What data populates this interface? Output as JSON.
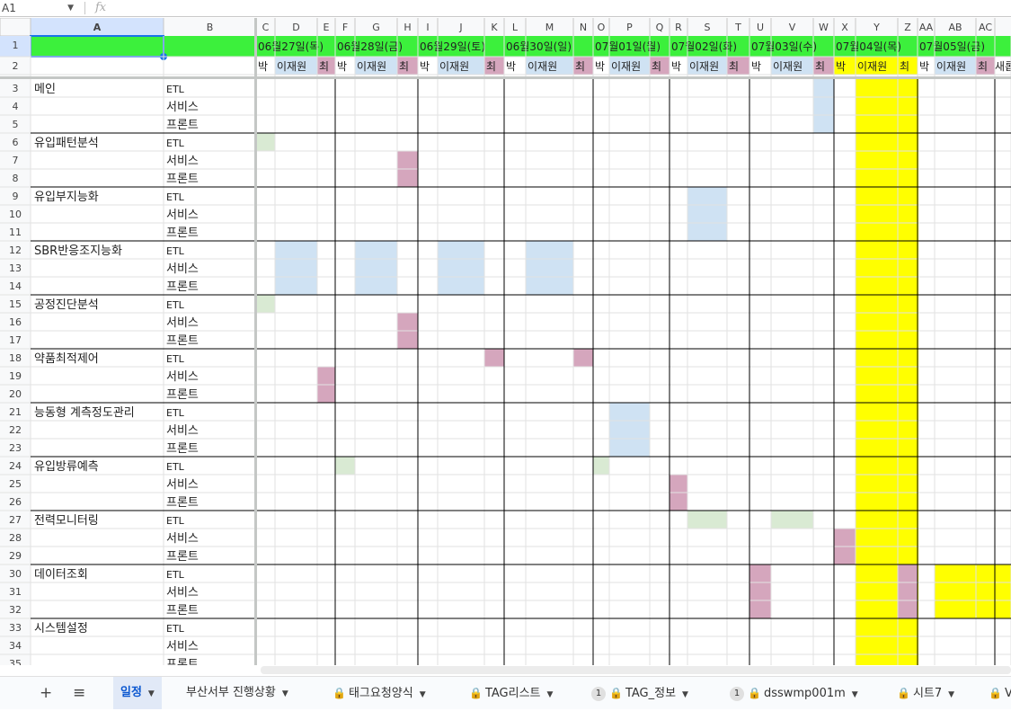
{
  "formula_bar": {
    "cell_ref": "A1",
    "fx": "fx"
  },
  "columns": [
    "A",
    "B",
    "C",
    "D",
    "E",
    "F",
    "G",
    "H",
    "I",
    "J",
    "K",
    "L",
    "M",
    "N",
    "O",
    "P",
    "Q",
    "R",
    "S",
    "T",
    "U",
    "V",
    "W",
    "X",
    "Y",
    "Z",
    "AA",
    "AB",
    "AC"
  ],
  "header": {
    "dates": [
      "06월27일(목)",
      "06월28일(금)",
      "06월29일(토)",
      "06월30일(일)",
      "07월01일(월)",
      "07월02일(화)",
      "07월03일(수)",
      "07월04일(목)",
      "07월05일(금)"
    ],
    "people": [
      "박",
      "이재원",
      "최"
    ],
    "trailing_text": "새롭"
  },
  "row_numbers": [
    "1",
    "2",
    "3",
    "4",
    "5",
    "6",
    "7",
    "8",
    "9",
    "10",
    "11",
    "12",
    "13",
    "14",
    "15",
    "16",
    "17",
    "18",
    "19",
    "20",
    "21",
    "22",
    "23",
    "24",
    "25",
    "26",
    "27",
    "28",
    "29",
    "30",
    "31",
    "32",
    "33",
    "34",
    "35"
  ],
  "modules": [
    "메인",
    "유입패턴분석",
    "유입부지능화",
    "SBR반응조지능화",
    "공정진단분석",
    "약품최적제어",
    "능동형 계측정도관리",
    "유입방류예측",
    "전력모니터링",
    "데이터조회",
    "시스템설정"
  ],
  "sub_rows": [
    "ETL",
    "서비스",
    "프론트"
  ],
  "colors": {
    "header_green": "#3cf03c",
    "etl": "#d9ead3",
    "service": "#cfe2f3",
    "front": "#d5a6bd",
    "highlight": "#ffff00",
    "selected": "#e8f0fe"
  },
  "tabs": [
    {
      "label": "일정",
      "locked": false,
      "badge": "",
      "active": true
    },
    {
      "label": "부산서부 진행상황",
      "locked": false,
      "badge": "",
      "active": false
    },
    {
      "label": "태그요청양식",
      "locked": true,
      "badge": "",
      "active": false
    },
    {
      "label": "TAG리스트",
      "locked": true,
      "badge": "",
      "active": false
    },
    {
      "label": "TAG_정보",
      "locked": true,
      "badge": "1",
      "active": false
    },
    {
      "label": "dsswmp001m",
      "locked": true,
      "badge": "1",
      "active": false
    },
    {
      "label": "시트7",
      "locked": true,
      "badge": "",
      "active": false
    },
    {
      "label": "V",
      "locked": true,
      "badge": "",
      "active": false
    }
  ]
}
